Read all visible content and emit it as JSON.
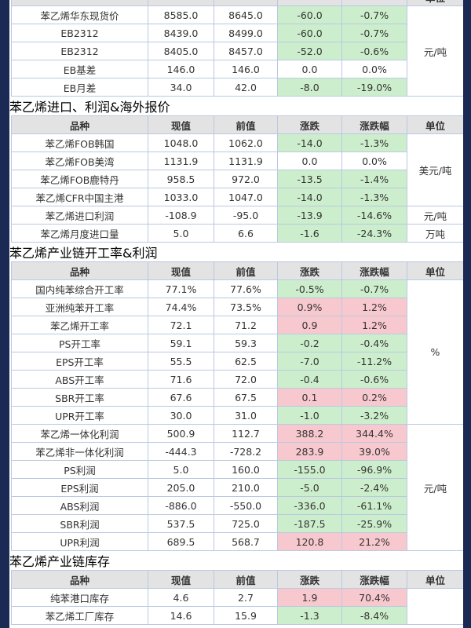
{
  "sections": [
    {
      "title": null,
      "header": [
        null,
        null,
        null,
        null,
        null,
        "单位"
      ],
      "rows": [
        [
          "苯乙烯华东现货价",
          "8585.0",
          "8645.0",
          "-60.0",
          "-0.7%",
          "元/吨"
        ],
        [
          "EB2312",
          "8439.0",
          "8499.0",
          "-60.0",
          "-0.7%",
          null
        ],
        [
          "EB2312",
          "8405.0",
          "8457.0",
          "-52.0",
          "-0.6%",
          null
        ],
        [
          "EB基差",
          "146.0",
          "146.0",
          "0.0",
          "0.0%",
          null
        ],
        [
          "EB月差",
          "34.0",
          "42.0",
          "-8.0",
          "-19.0%",
          null
        ]
      ]
    },
    {
      "title": "苯乙烯进口、利润&海外报价",
      "header": [
        "品种",
        "现值",
        "前值",
        "涨跌",
        "涨跌幅",
        "单位"
      ],
      "rows": [
        [
          "苯乙烯FOB韩国",
          "1048.0",
          "1062.0",
          "-14.0",
          "-1.3%",
          "美元/吨"
        ],
        [
          "苯乙烯FOB美湾",
          "1131.9",
          "1131.9",
          "0.0",
          "0.0%",
          null
        ],
        [
          "苯乙烯FOB鹿特丹",
          "958.5",
          "972.0",
          "-13.5",
          "-1.4%",
          null
        ],
        [
          "苯乙烯CFR中国主港",
          "1033.0",
          "1047.0",
          "-14.0",
          "-1.3%",
          null
        ],
        [
          "苯乙烯进口利润",
          "-108.9",
          "-95.0",
          "-13.9",
          "-14.6%",
          "元/吨"
        ],
        [
          "苯乙烯月度进口量",
          "5.0",
          "6.6",
          "-1.6",
          "-24.3%",
          "万吨"
        ]
      ]
    },
    {
      "title": "苯乙烯产业链开工率&利润",
      "header": [
        "品种",
        "现值",
        "前值",
        "涨跌",
        "涨跌幅",
        "单位"
      ],
      "rows": [
        [
          "国内纯苯综合开工率",
          "77.1%",
          "77.6%",
          "-0.5%",
          "-0.7%",
          "%"
        ],
        [
          "亚洲纯苯开工率",
          "74.4%",
          "73.5%",
          "0.9%",
          "1.2%",
          null
        ],
        [
          "苯乙烯开工率",
          "72.1",
          "71.2",
          "0.9",
          "1.2%",
          null
        ],
        [
          "PS开工率",
          "59.1",
          "59.3",
          "-0.2",
          "-0.4%",
          null
        ],
        [
          "EPS开工率",
          "55.5",
          "62.5",
          "-7.0",
          "-11.2%",
          null
        ],
        [
          "ABS开工率",
          "71.6",
          "72.0",
          "-0.4",
          "-0.6%",
          null
        ],
        [
          "SBR开工率",
          "67.6",
          "67.5",
          "0.1",
          "0.2%",
          null
        ],
        [
          "UPR开工率",
          "30.0",
          "31.0",
          "-1.0",
          "-3.2%",
          null
        ],
        [
          "苯乙烯一体化利润",
          "500.9",
          "112.7",
          "388.2",
          "344.4%",
          "元/吨"
        ],
        [
          "苯乙烯非一体化利润",
          "-444.3",
          "-728.2",
          "283.9",
          "39.0%",
          null
        ],
        [
          "PS利润",
          "5.0",
          "160.0",
          "-155.0",
          "-96.9%",
          null
        ],
        [
          "EPS利润",
          "205.0",
          "210.0",
          "-5.0",
          "-2.4%",
          null
        ],
        [
          "ABS利润",
          "-886.0",
          "-550.0",
          "-336.0",
          "-61.1%",
          null
        ],
        [
          "SBR利润",
          "537.5",
          "725.0",
          "-187.5",
          "-25.9%",
          null
        ],
        [
          "UPR利润",
          "689.5",
          "568.7",
          "120.8",
          "21.2%",
          null
        ]
      ]
    },
    {
      "title": "苯乙烯产业链库存",
      "header": [
        "品种",
        "现值",
        "前值",
        "涨跌",
        "涨跌幅",
        "单位"
      ],
      "rows": [
        [
          "纯苯港口库存",
          "4.6",
          "2.7",
          "1.9",
          "70.4%",
          null
        ],
        [
          "苯乙烯工厂库存",
          "14.6",
          "15.9",
          "-1.3",
          "-8.4%",
          null
        ]
      ]
    }
  ]
}
